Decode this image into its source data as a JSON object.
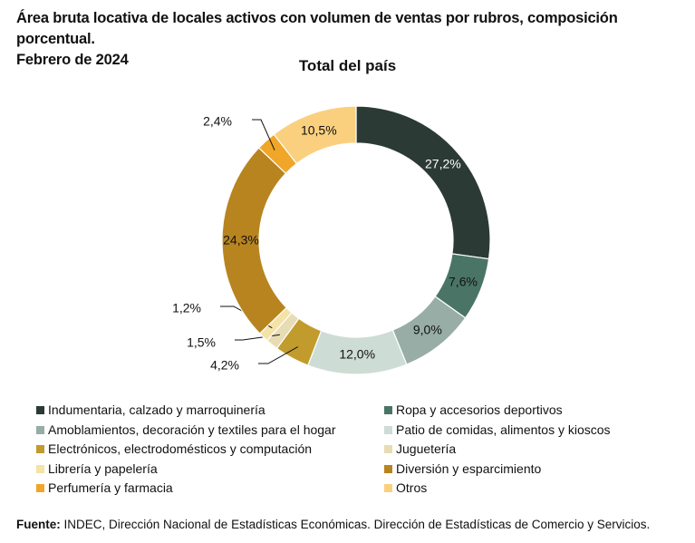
{
  "title": "Área bruta locativa de locales activos con volumen de ventas por rubros, composición porcentual.",
  "subtitle_date": "Febrero de 2024",
  "chart_data": {
    "type": "pie",
    "variant": "donut",
    "title": "Total del país",
    "unit": "%",
    "categories": [
      "Indumentaria, calzado y marroquinería",
      "Ropa y accesorios deportivos",
      "Amoblamientos, decoración y textiles para el hogar",
      "Patio de comidas, alimentos y kioscos",
      "Electrónicos, electrodomésticos y computación",
      "Juguetería",
      "Librería y papelería",
      "Diversión y esparcimiento",
      "Perfumería y farmacia",
      "Otros"
    ],
    "values": [
      27.2,
      7.6,
      9.0,
      12.0,
      4.2,
      1.5,
      1.2,
      24.3,
      2.4,
      10.5
    ],
    "labels": [
      "27,2%",
      "7,6%",
      "9,0%",
      "12,0%",
      "4,2%",
      "1,5%",
      "1,2%",
      "24,3%",
      "2,4%",
      "10,5%"
    ],
    "colors": [
      "#2b3a34",
      "#4a7566",
      "#97ada6",
      "#cddcd4",
      "#c19b2c",
      "#e7dcb4",
      "#f5e2a6",
      "#b8841f",
      "#f0a629",
      "#fad07f"
    ],
    "label_colors": [
      "#ffffff",
      "#111111",
      "#111111",
      "#111111",
      "#111111",
      "#111111",
      "#111111",
      "#111111",
      "#111111",
      "#111111"
    ],
    "legend_position": "bottom",
    "legend_order": [
      0,
      1,
      2,
      3,
      4,
      5,
      6,
      7,
      8,
      9
    ]
  },
  "source": {
    "label": "Fuente:",
    "text": " INDEC, Dirección Nacional de Estadísticas Económicas. Dirección de Estadísticas de Comercio y Servicios."
  }
}
